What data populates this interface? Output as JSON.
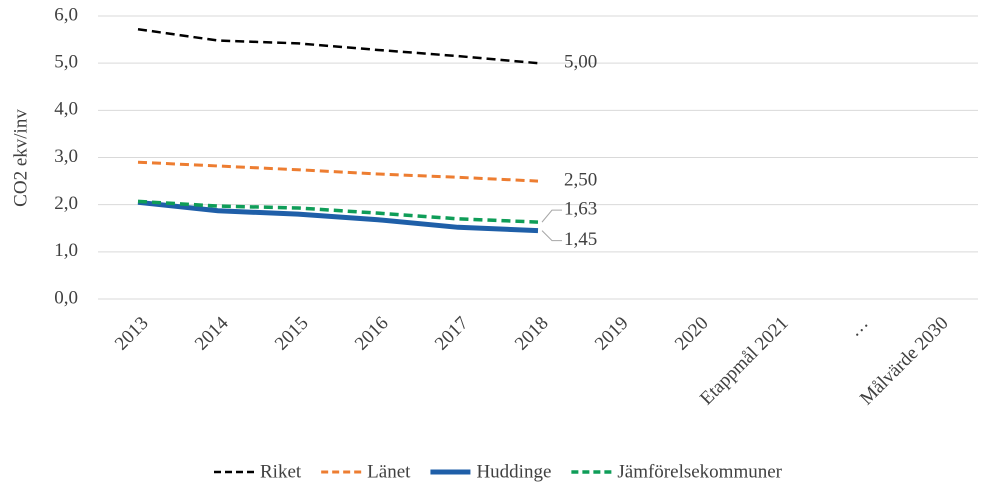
{
  "chart_data": {
    "type": "line",
    "y_label": "CO2 ekv/inv",
    "categories": [
      "2013",
      "2014",
      "2015",
      "2016",
      "2017",
      "2018",
      "2019",
      "2020",
      "Etappmål 2021",
      "…",
      "Målvärde 2030"
    ],
    "series": [
      {
        "name": "Riket",
        "color": "#000000",
        "dashed": true,
        "width": 2.5,
        "values": [
          5.72,
          5.48,
          5.42,
          5.28,
          5.15,
          5.0,
          null,
          null,
          null,
          null,
          null
        ],
        "value_labels": [
          null,
          null,
          null,
          null,
          null,
          "5,00",
          null,
          null,
          null,
          null,
          null
        ]
      },
      {
        "name": "Länet",
        "color": "#ed7d31",
        "dashed": true,
        "width": 3,
        "values": [
          2.9,
          2.82,
          2.74,
          2.65,
          2.58,
          2.5,
          null,
          null,
          null,
          null,
          null
        ],
        "value_labels": [
          null,
          null,
          null,
          null,
          null,
          "2,50",
          null,
          null,
          null,
          null,
          null
        ]
      },
      {
        "name": "Huddinge",
        "color": "#1f5fa8",
        "dashed": false,
        "width": 5,
        "values": [
          2.05,
          1.87,
          1.8,
          1.68,
          1.52,
          1.45,
          null,
          null,
          null,
          null,
          null
        ],
        "value_labels": [
          null,
          null,
          null,
          null,
          null,
          "1,45",
          null,
          null,
          null,
          null,
          null
        ]
      },
      {
        "name": "Jämförelsekommuner",
        "color": "#0f9d58",
        "dashed": true,
        "width": 3.5,
        "values": [
          2.07,
          1.97,
          1.93,
          1.82,
          1.7,
          1.63,
          null,
          null,
          null,
          null,
          null
        ],
        "value_labels": [
          null,
          null,
          null,
          null,
          null,
          "1,63",
          null,
          null,
          null,
          null,
          null
        ]
      }
    ],
    "ylim": [
      0,
      6
    ],
    "yticks": [
      {
        "value": 0,
        "label": "0,0"
      },
      {
        "value": 1,
        "label": "1,0"
      },
      {
        "value": 2,
        "label": "2,0"
      },
      {
        "value": 3,
        "label": "3,0"
      },
      {
        "value": 4,
        "label": "4,0"
      },
      {
        "value": 5,
        "label": "5,0"
      },
      {
        "value": 6,
        "label": "6,0"
      }
    ],
    "grid": true,
    "legend": "bottom"
  }
}
